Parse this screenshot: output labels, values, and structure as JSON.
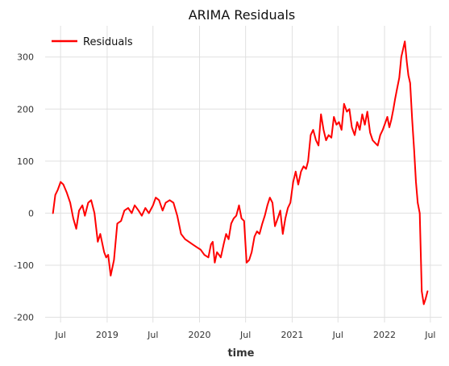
{
  "chart_data": {
    "type": "line",
    "title": "ARIMA Residuals",
    "xlabel": "time",
    "ylabel": "",
    "ylim": [
      -210,
      360
    ],
    "xlim": [
      "2018-05-01",
      "2022-08-15"
    ],
    "x_ticks": [
      {
        "date": "2018-07-01",
        "label": "Jul"
      },
      {
        "date": "2019-01-01",
        "label": "2019"
      },
      {
        "date": "2019-07-01",
        "label": "Jul"
      },
      {
        "date": "2020-01-01",
        "label": "2020"
      },
      {
        "date": "2020-07-01",
        "label": "Jul"
      },
      {
        "date": "2021-01-01",
        "label": "2021"
      },
      {
        "date": "2021-07-01",
        "label": "Jul"
      },
      {
        "date": "2022-01-01",
        "label": "2022"
      },
      {
        "date": "2022-07-01",
        "label": "Jul"
      }
    ],
    "y_ticks": [
      -200,
      -100,
      0,
      100,
      200,
      300
    ],
    "grid": true,
    "legend": {
      "position": "top-left",
      "entries": [
        "Residuals"
      ]
    },
    "series": [
      {
        "name": "Residuals",
        "color": "#ff0000",
        "x": [
          "2018-06-01",
          "2018-06-10",
          "2018-06-20",
          "2018-07-01",
          "2018-07-12",
          "2018-07-25",
          "2018-08-08",
          "2018-08-20",
          "2018-09-01",
          "2018-09-12",
          "2018-09-25",
          "2018-10-05",
          "2018-10-18",
          "2018-10-30",
          "2018-11-12",
          "2018-11-25",
          "2018-12-05",
          "2018-12-20",
          "2018-12-28",
          "2019-01-05",
          "2019-01-15",
          "2019-01-28",
          "2019-02-10",
          "2019-02-25",
          "2019-03-10",
          "2019-03-25",
          "2019-04-08",
          "2019-04-20",
          "2019-05-05",
          "2019-05-18",
          "2019-06-01",
          "2019-06-15",
          "2019-07-01",
          "2019-07-12",
          "2019-07-25",
          "2019-08-08",
          "2019-08-20",
          "2019-09-05",
          "2019-09-20",
          "2019-10-05",
          "2019-10-20",
          "2019-11-05",
          "2019-11-20",
          "2019-12-05",
          "2019-12-20",
          "2020-01-05",
          "2020-01-20",
          "2020-02-05",
          "2020-02-15",
          "2020-02-22",
          "2020-03-01",
          "2020-03-10",
          "2020-03-18",
          "2020-03-25",
          "2020-04-05",
          "2020-04-15",
          "2020-04-25",
          "2020-05-05",
          "2020-05-15",
          "2020-05-25",
          "2020-06-05",
          "2020-06-15",
          "2020-06-25",
          "2020-07-05",
          "2020-07-15",
          "2020-07-25",
          "2020-08-05",
          "2020-08-15",
          "2020-08-25",
          "2020-09-05",
          "2020-09-15",
          "2020-09-25",
          "2020-10-05",
          "2020-10-15",
          "2020-10-25",
          "2020-11-05",
          "2020-11-15",
          "2020-11-25",
          "2020-12-05",
          "2020-12-15",
          "2020-12-25",
          "2021-01-05",
          "2021-01-15",
          "2021-01-25",
          "2021-02-05",
          "2021-02-15",
          "2021-02-25",
          "2021-03-05",
          "2021-03-15",
          "2021-03-25",
          "2021-04-05",
          "2021-04-15",
          "2021-04-25",
          "2021-05-05",
          "2021-05-15",
          "2021-05-25",
          "2021-06-05",
          "2021-06-15",
          "2021-06-25",
          "2021-07-05",
          "2021-07-15",
          "2021-07-25",
          "2021-08-05",
          "2021-08-15",
          "2021-08-25",
          "2021-09-05",
          "2021-09-15",
          "2021-09-25",
          "2021-10-05",
          "2021-10-15",
          "2021-10-25",
          "2021-11-05",
          "2021-11-15",
          "2021-11-25",
          "2021-12-05",
          "2021-12-15",
          "2021-12-25",
          "2022-01-05",
          "2022-01-12",
          "2022-01-20",
          "2022-01-28",
          "2022-02-05",
          "2022-02-12",
          "2022-02-20",
          "2022-02-28",
          "2022-03-08",
          "2022-03-15",
          "2022-03-22",
          "2022-03-30",
          "2022-04-05",
          "2022-04-12",
          "2022-04-20",
          "2022-04-28",
          "2022-05-05",
          "2022-05-12",
          "2022-05-20",
          "2022-05-28",
          "2022-06-05",
          "2022-06-12",
          "2022-06-20"
        ],
        "y": [
          0,
          35,
          45,
          60,
          55,
          40,
          20,
          -10,
          -30,
          5,
          15,
          -5,
          20,
          25,
          0,
          -55,
          -40,
          -75,
          -85,
          -80,
          -120,
          -90,
          -20,
          -15,
          5,
          10,
          0,
          15,
          5,
          -5,
          10,
          0,
          15,
          30,
          25,
          5,
          20,
          25,
          20,
          -5,
          -40,
          -50,
          -55,
          -60,
          -65,
          -70,
          -80,
          -85,
          -60,
          -55,
          -95,
          -75,
          -80,
          -85,
          -60,
          -40,
          -50,
          -20,
          -10,
          -5,
          15,
          -10,
          -15,
          -95,
          -90,
          -75,
          -45,
          -35,
          -40,
          -20,
          -5,
          15,
          30,
          20,
          -25,
          -10,
          5,
          -40,
          -10,
          10,
          20,
          60,
          80,
          55,
          80,
          90,
          85,
          100,
          150,
          160,
          140,
          130,
          190,
          160,
          140,
          150,
          145,
          185,
          170,
          175,
          160,
          210,
          195,
          200,
          165,
          150,
          175,
          160,
          190,
          170,
          195,
          155,
          140,
          135,
          130,
          150,
          160,
          175,
          185,
          165,
          180,
          200,
          220,
          240,
          260,
          300,
          315,
          330,
          290,
          265,
          250,
          180,
          120,
          60,
          20,
          0,
          -150,
          -175,
          -165,
          -150
        ]
      }
    ]
  }
}
